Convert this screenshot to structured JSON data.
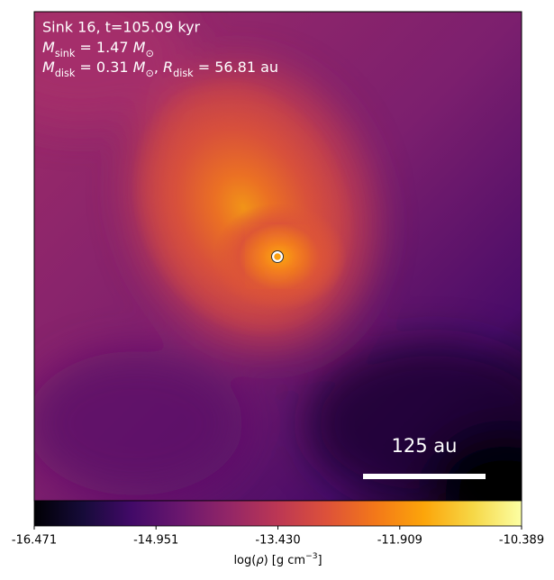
{
  "chart_data": {
    "type": "density_map",
    "title": "Sink 16, t=105.09 kyr",
    "annotations": [
      [
        {
          "text": "M",
          "style": "italic"
        },
        {
          "text": "sink",
          "style": "sub"
        },
        {
          "text": " = 1.47 "
        },
        {
          "text": "M",
          "style": "italic"
        },
        {
          "text": "⊙",
          "style": "sub"
        }
      ],
      [
        {
          "text": "M",
          "style": "italic"
        },
        {
          "text": "disk",
          "style": "sub"
        },
        {
          "text": " = 0.31 "
        },
        {
          "text": "M",
          "style": "italic"
        },
        {
          "text": "⊙",
          "style": "sub"
        },
        {
          "text": ", "
        },
        {
          "text": "R",
          "style": "italic"
        },
        {
          "text": "disk",
          "style": "sub"
        },
        {
          "text": " = 56.81 au"
        }
      ]
    ],
    "scale_bar_label": "125 au",
    "colormap": "inferno",
    "clim": [
      -16.471,
      -10.389
    ],
    "cticks": [
      -16.471,
      -14.951,
      {
        "value": -13.43,
        "label": "-13.430"
      },
      -11.909,
      -10.389
    ],
    "colorbar_label": [
      {
        "text": "log("
      },
      {
        "text": "ρ",
        "style": "italic"
      },
      {
        "text": ") [g cm"
      },
      {
        "text": "−3",
        "style": "sup"
      },
      {
        "text": "]"
      }
    ]
  }
}
